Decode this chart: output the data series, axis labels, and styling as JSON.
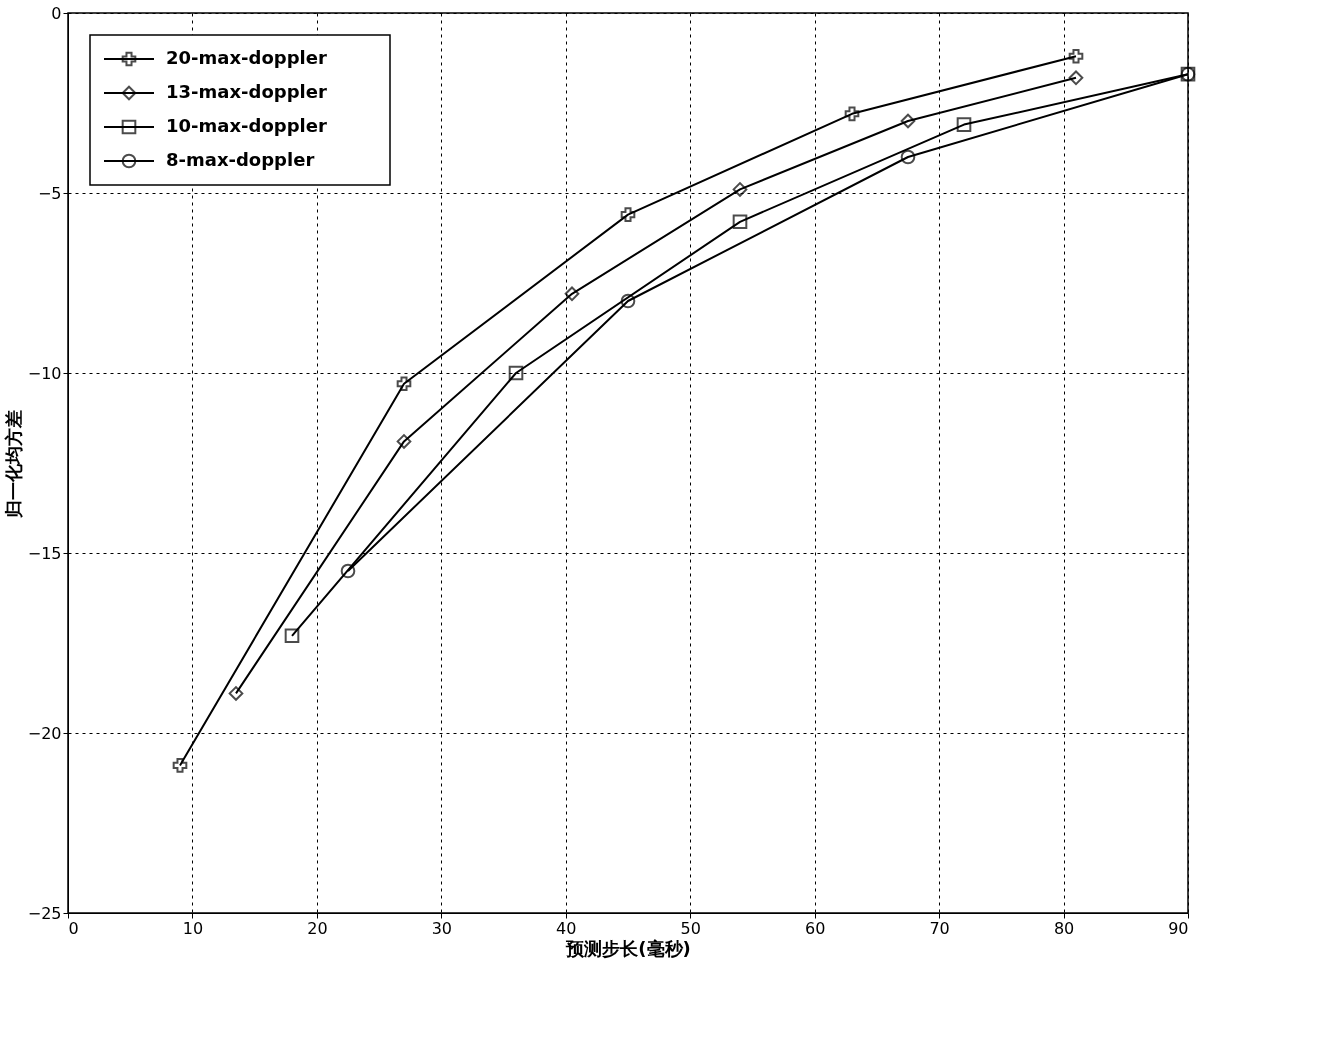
{
  "chart_data": {
    "type": "line",
    "xlabel": "预测步长(毫秒)",
    "ylabel": "归一化均方差",
    "xlim": [
      0,
      90
    ],
    "ylim": [
      -25,
      0
    ],
    "xticks": [
      0,
      10,
      20,
      30,
      40,
      50,
      60,
      70,
      80,
      90
    ],
    "yticks": [
      -25,
      -20,
      -15,
      -10,
      -5,
      0
    ],
    "grid": true,
    "legend": "top left",
    "line_style": "solid",
    "series": [
      {
        "name": "20-max-doppler",
        "color": "#000000",
        "marker": "cross",
        "x": [
          9,
          27,
          45,
          63,
          81
        ],
        "values": [
          -20.9,
          -10.3,
          -5.6,
          -2.8,
          -1.2
        ]
      },
      {
        "name": "13-max-doppler",
        "color": "#000000",
        "marker": "diamond",
        "x": [
          13.5,
          27,
          40.5,
          54,
          67.5,
          81
        ],
        "values": [
          -18.9,
          -11.9,
          -7.8,
          -4.9,
          -3.0,
          -1.8
        ]
      },
      {
        "name": "10-max-doppler",
        "color": "#000000",
        "marker": "square",
        "x": [
          18,
          36,
          54,
          72,
          90
        ],
        "values": [
          -17.3,
          -10.0,
          -5.8,
          -3.1,
          -1.7
        ]
      },
      {
        "name": "8-max-doppler",
        "color": "#000000",
        "marker": "circle",
        "x": [
          22.5,
          45,
          67.5,
          90
        ],
        "values": [
          -15.5,
          -8.0,
          -4.0,
          -1.7
        ]
      }
    ]
  }
}
